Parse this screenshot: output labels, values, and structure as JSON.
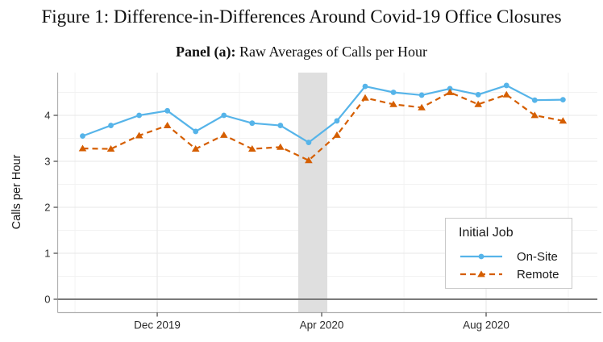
{
  "figure": {
    "title": "Figure 1: Difference-in-Differences Around Covid-19 Office Closures",
    "panel_label": "Panel (a):",
    "panel_title": " Raw Averages of Calls per Hour"
  },
  "chart_data": {
    "type": "line",
    "title": "Panel (a): Raw Averages of Calls per Hour",
    "xlabel": "",
    "ylabel": "Calls per Hour",
    "x": [
      0,
      1,
      2,
      3,
      4,
      5,
      6,
      7,
      8,
      9,
      10,
      11,
      12,
      13,
      14,
      15,
      16,
      17
    ],
    "x_note": "18 evenly spaced time periods (approx. 3-week bins, Oct 2019 - Oct 2020)",
    "series": [
      {
        "name": "On-Site",
        "color": "#56B4E9",
        "linestyle": "solid",
        "marker": "circle",
        "values": [
          3.55,
          3.78,
          4.0,
          4.1,
          3.65,
          4.0,
          3.83,
          3.78,
          3.41,
          3.88,
          4.63,
          4.5,
          4.44,
          4.58,
          4.45,
          4.65,
          4.33,
          4.34
        ]
      },
      {
        "name": "Remote",
        "color": "#D55E00",
        "linestyle": "dashed",
        "marker": "triangle",
        "values": [
          3.28,
          3.27,
          3.56,
          3.78,
          3.27,
          3.57,
          3.27,
          3.31,
          3.02,
          3.57,
          4.38,
          4.24,
          4.17,
          4.5,
          4.24,
          4.45,
          4.0,
          3.88
        ]
      }
    ],
    "xticks": {
      "positions_index": [
        2.64,
        8.46,
        14.28
      ],
      "labels": [
        "Dec 2019",
        "Apr 2020",
        "Aug 2020"
      ]
    },
    "yticks": [
      0,
      1,
      2,
      3,
      4
    ],
    "ylim": [
      -0.28,
      4.93
    ],
    "grid": "major and minor, light gray",
    "shaded_band_x_index": [
      7.63,
      8.66
    ],
    "zero_line": true,
    "legend": {
      "title": "Initial Job",
      "position": "inside bottom-right"
    },
    "colors": {
      "band": "#dfdfdf",
      "grid_major": "#e7e7e7",
      "grid_minor": "#f2f2f2",
      "zero_line": "#7a7a7a",
      "axis_line": "#b0b0b0",
      "tick_mark": "#333333",
      "tick_text": "#2b2b2b"
    }
  }
}
